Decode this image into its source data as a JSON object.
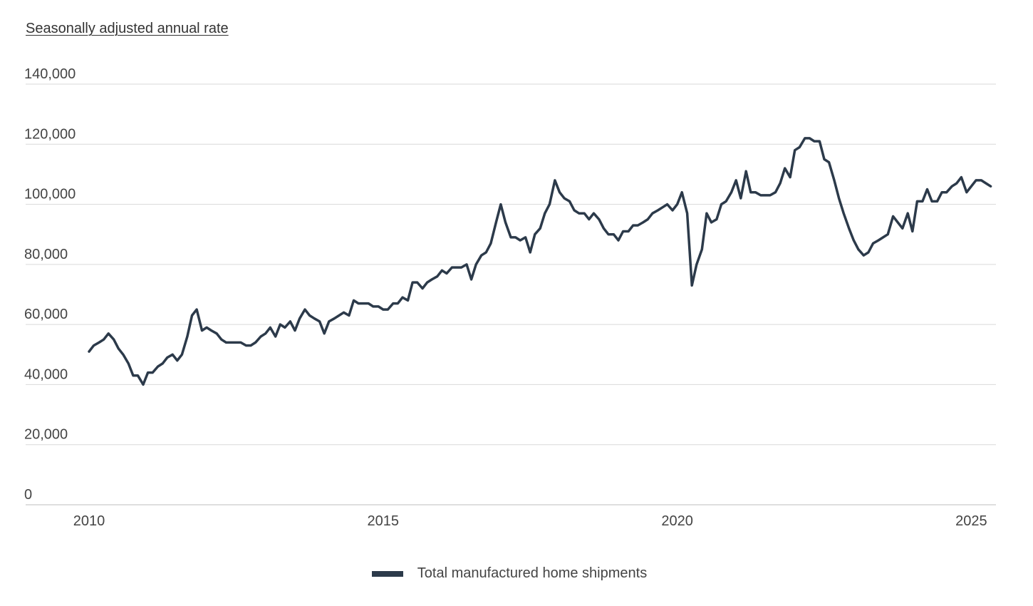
{
  "chart_data": {
    "type": "line",
    "ylabel": "Seasonally adjusted annual rate",
    "ylim": [
      0,
      140000
    ],
    "yticks": [
      0,
      20000,
      40000,
      60000,
      80000,
      100000,
      120000,
      140000
    ],
    "ytick_labels": [
      "0",
      "20,000",
      "40,000",
      "60,000",
      "80,000",
      "100,000",
      "120,000",
      "140,000"
    ],
    "xlim": [
      2010,
      2025.08
    ],
    "xticks": [
      2010,
      2015,
      2020,
      2025
    ],
    "xtick_labels": [
      "2010",
      "2015",
      "2020",
      "2025"
    ],
    "grid": true,
    "legend_position": "bottom-center",
    "series": [
      {
        "name": "Total manufactured home shipments",
        "color": "#2c3a4a",
        "points": [
          [
            2010.0,
            51000
          ],
          [
            2010.08,
            53000
          ],
          [
            2010.17,
            54000
          ],
          [
            2010.25,
            55000
          ],
          [
            2010.33,
            57000
          ],
          [
            2010.42,
            55000
          ],
          [
            2010.5,
            52000
          ],
          [
            2010.58,
            50000
          ],
          [
            2010.67,
            47000
          ],
          [
            2010.75,
            43000
          ],
          [
            2010.83,
            43000
          ],
          [
            2010.92,
            40000
          ],
          [
            2011.0,
            44000
          ],
          [
            2011.08,
            44000
          ],
          [
            2011.17,
            46000
          ],
          [
            2011.25,
            47000
          ],
          [
            2011.33,
            49000
          ],
          [
            2011.42,
            50000
          ],
          [
            2011.5,
            48000
          ],
          [
            2011.58,
            50000
          ],
          [
            2011.67,
            56000
          ],
          [
            2011.75,
            63000
          ],
          [
            2011.83,
            65000
          ],
          [
            2011.92,
            58000
          ],
          [
            2012.0,
            59000
          ],
          [
            2012.08,
            58000
          ],
          [
            2012.17,
            57000
          ],
          [
            2012.25,
            55000
          ],
          [
            2012.33,
            54000
          ],
          [
            2012.42,
            54000
          ],
          [
            2012.5,
            54000
          ],
          [
            2012.58,
            54000
          ],
          [
            2012.67,
            53000
          ],
          [
            2012.75,
            53000
          ],
          [
            2012.83,
            54000
          ],
          [
            2012.92,
            56000
          ],
          [
            2013.0,
            57000
          ],
          [
            2013.08,
            59000
          ],
          [
            2013.17,
            56000
          ],
          [
            2013.25,
            60000
          ],
          [
            2013.33,
            59000
          ],
          [
            2013.42,
            61000
          ],
          [
            2013.5,
            58000
          ],
          [
            2013.58,
            62000
          ],
          [
            2013.67,
            65000
          ],
          [
            2013.75,
            63000
          ],
          [
            2013.83,
            62000
          ],
          [
            2013.92,
            61000
          ],
          [
            2014.0,
            57000
          ],
          [
            2014.08,
            61000
          ],
          [
            2014.17,
            62000
          ],
          [
            2014.25,
            63000
          ],
          [
            2014.33,
            64000
          ],
          [
            2014.42,
            63000
          ],
          [
            2014.5,
            68000
          ],
          [
            2014.58,
            67000
          ],
          [
            2014.67,
            67000
          ],
          [
            2014.75,
            67000
          ],
          [
            2014.83,
            66000
          ],
          [
            2014.92,
            66000
          ],
          [
            2015.0,
            65000
          ],
          [
            2015.08,
            65000
          ],
          [
            2015.17,
            67000
          ],
          [
            2015.25,
            67000
          ],
          [
            2015.33,
            69000
          ],
          [
            2015.42,
            68000
          ],
          [
            2015.5,
            74000
          ],
          [
            2015.58,
            74000
          ],
          [
            2015.67,
            72000
          ],
          [
            2015.75,
            74000
          ],
          [
            2015.83,
            75000
          ],
          [
            2015.92,
            76000
          ],
          [
            2016.0,
            78000
          ],
          [
            2016.08,
            77000
          ],
          [
            2016.17,
            79000
          ],
          [
            2016.25,
            79000
          ],
          [
            2016.33,
            79000
          ],
          [
            2016.42,
            80000
          ],
          [
            2016.5,
            75000
          ],
          [
            2016.58,
            80000
          ],
          [
            2016.67,
            83000
          ],
          [
            2016.75,
            84000
          ],
          [
            2016.83,
            87000
          ],
          [
            2016.92,
            94000
          ],
          [
            2017.0,
            100000
          ],
          [
            2017.08,
            94000
          ],
          [
            2017.17,
            89000
          ],
          [
            2017.25,
            89000
          ],
          [
            2017.33,
            88000
          ],
          [
            2017.42,
            89000
          ],
          [
            2017.5,
            84000
          ],
          [
            2017.58,
            90000
          ],
          [
            2017.67,
            92000
          ],
          [
            2017.75,
            97000
          ],
          [
            2017.83,
            100000
          ],
          [
            2017.92,
            108000
          ],
          [
            2018.0,
            104000
          ],
          [
            2018.08,
            102000
          ],
          [
            2018.17,
            101000
          ],
          [
            2018.25,
            98000
          ],
          [
            2018.33,
            97000
          ],
          [
            2018.42,
            97000
          ],
          [
            2018.5,
            95000
          ],
          [
            2018.58,
            97000
          ],
          [
            2018.67,
            95000
          ],
          [
            2018.75,
            92000
          ],
          [
            2018.83,
            90000
          ],
          [
            2018.92,
            90000
          ],
          [
            2019.0,
            88000
          ],
          [
            2019.08,
            91000
          ],
          [
            2019.17,
            91000
          ],
          [
            2019.25,
            93000
          ],
          [
            2019.33,
            93000
          ],
          [
            2019.42,
            94000
          ],
          [
            2019.5,
            95000
          ],
          [
            2019.58,
            97000
          ],
          [
            2019.67,
            98000
          ],
          [
            2019.75,
            99000
          ],
          [
            2019.83,
            100000
          ],
          [
            2019.92,
            98000
          ],
          [
            2020.0,
            100000
          ],
          [
            2020.08,
            104000
          ],
          [
            2020.17,
            97000
          ],
          [
            2020.25,
            73000
          ],
          [
            2020.33,
            80000
          ],
          [
            2020.42,
            85000
          ],
          [
            2020.5,
            97000
          ],
          [
            2020.58,
            94000
          ],
          [
            2020.67,
            95000
          ],
          [
            2020.75,
            100000
          ],
          [
            2020.83,
            101000
          ],
          [
            2020.92,
            104000
          ],
          [
            2021.0,
            108000
          ],
          [
            2021.08,
            102000
          ],
          [
            2021.17,
            111000
          ],
          [
            2021.25,
            104000
          ],
          [
            2021.33,
            104000
          ],
          [
            2021.42,
            103000
          ],
          [
            2021.5,
            103000
          ],
          [
            2021.58,
            103000
          ],
          [
            2021.67,
            104000
          ],
          [
            2021.75,
            107000
          ],
          [
            2021.83,
            112000
          ],
          [
            2021.92,
            109000
          ],
          [
            2022.0,
            118000
          ],
          [
            2022.08,
            119000
          ],
          [
            2022.17,
            122000
          ],
          [
            2022.25,
            122000
          ],
          [
            2022.33,
            121000
          ],
          [
            2022.42,
            121000
          ],
          [
            2022.5,
            115000
          ],
          [
            2022.58,
            114000
          ],
          [
            2022.67,
            108000
          ],
          [
            2022.75,
            102000
          ],
          [
            2022.83,
            97000
          ],
          [
            2022.92,
            92000
          ],
          [
            2023.0,
            88000
          ],
          [
            2023.08,
            85000
          ],
          [
            2023.17,
            83000
          ],
          [
            2023.25,
            84000
          ],
          [
            2023.33,
            87000
          ],
          [
            2023.42,
            88000
          ],
          [
            2023.5,
            89000
          ],
          [
            2023.58,
            90000
          ],
          [
            2023.67,
            96000
          ],
          [
            2023.75,
            94000
          ],
          [
            2023.83,
            92000
          ],
          [
            2023.92,
            97000
          ],
          [
            2024.0,
            91000
          ],
          [
            2024.08,
            101000
          ],
          [
            2024.17,
            101000
          ],
          [
            2024.25,
            105000
          ],
          [
            2024.33,
            101000
          ],
          [
            2024.42,
            101000
          ],
          [
            2024.5,
            104000
          ],
          [
            2024.58,
            104000
          ],
          [
            2024.67,
            106000
          ],
          [
            2024.75,
            107000
          ],
          [
            2024.83,
            109000
          ],
          [
            2024.92,
            104000
          ],
          [
            2025.0,
            106000
          ],
          [
            2025.08,
            108000
          ],
          [
            2025.17,
            108000
          ],
          [
            2025.25,
            107000
          ],
          [
            2025.33,
            106000
          ]
        ]
      }
    ]
  }
}
